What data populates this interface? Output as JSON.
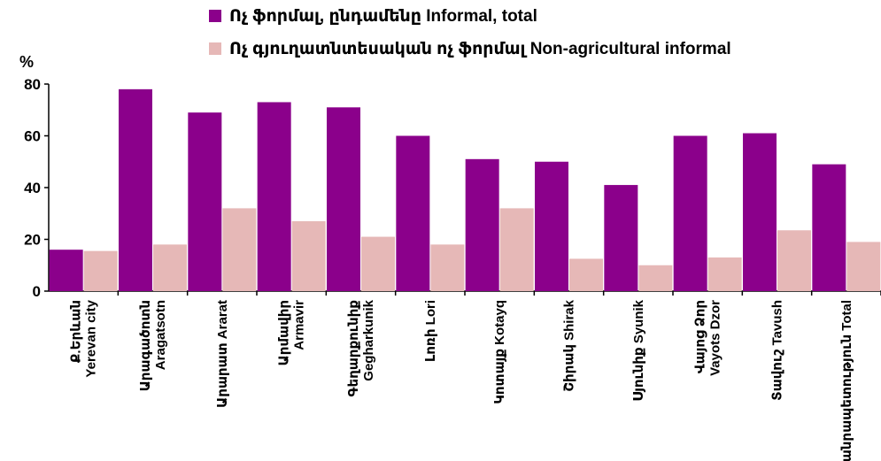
{
  "chart_data": {
    "type": "bar",
    "unit_label": "%",
    "categories": [
      [
        "Ք.Երևան",
        "Yerevan city"
      ],
      [
        "Արագածոտն",
        "Aragatsotn"
      ],
      [
        "Արարատ Ararat"
      ],
      [
        "Արմավիր",
        "Armavir"
      ],
      [
        "Գեղարքունիք",
        "Gegharkunik"
      ],
      [
        "Լոռի Lori"
      ],
      [
        "Կոտայք Kotayq"
      ],
      [
        "Շիրակ Shirak"
      ],
      [
        "Սյունիք Syunik"
      ],
      [
        "Վայոց Ձոր",
        "Vayots Dzor"
      ],
      [
        "Տավուշ Tavush"
      ],
      [
        "Հանրապետություն Total"
      ]
    ],
    "series": [
      {
        "name": "Ոչ ֆորմալ, ընդամենը  Informal, total",
        "color": "#8b008b",
        "values": [
          16,
          78,
          69,
          73,
          71,
          60,
          51,
          50,
          41,
          60,
          61,
          49
        ]
      },
      {
        "name": "Ոչ գյուղատնտեսական ոչ ֆորմալ  Non-agricultural informal",
        "color": "#e6b8b7",
        "values": [
          15.5,
          18,
          32,
          27,
          21,
          18,
          32,
          12.5,
          10,
          13,
          23.5,
          19
        ]
      }
    ],
    "yticks": [
      0,
      20,
      40,
      60,
      80
    ],
    "ylim": [
      0,
      80
    ],
    "grid": false,
    "legend_position": "top"
  }
}
